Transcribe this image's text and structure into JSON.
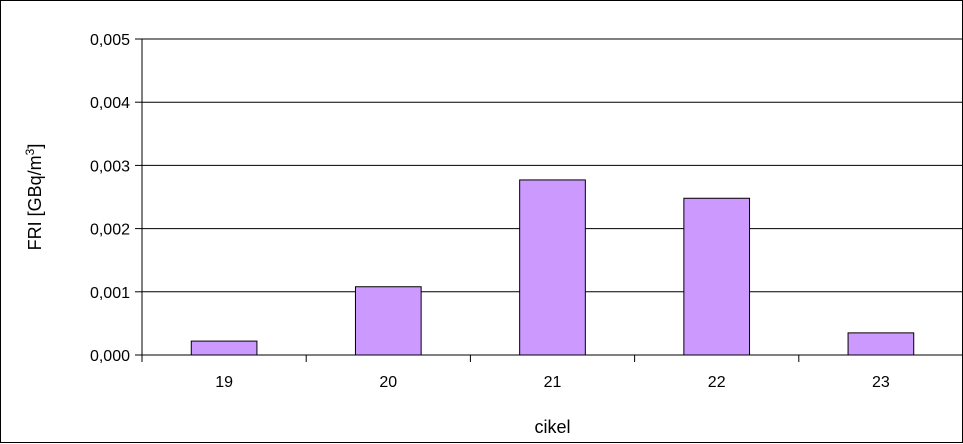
{
  "chart_data": {
    "type": "bar",
    "categories": [
      "19",
      "20",
      "21",
      "22",
      "23"
    ],
    "values": [
      0.00022,
      0.00108,
      0.00277,
      0.00248,
      0.00035
    ],
    "xlabel": "cikel",
    "ylabel": "FRI [GBq/m",
    "ylabel_superscript": "3",
    "ylabel_suffix": "]",
    "ylim": [
      0,
      0.005
    ],
    "y_ticks": [
      "0,000",
      "0,001",
      "0,002",
      "0,003",
      "0,004",
      "0,005"
    ],
    "grid": true,
    "legend": "none",
    "bar_color": "#cc99ff"
  }
}
